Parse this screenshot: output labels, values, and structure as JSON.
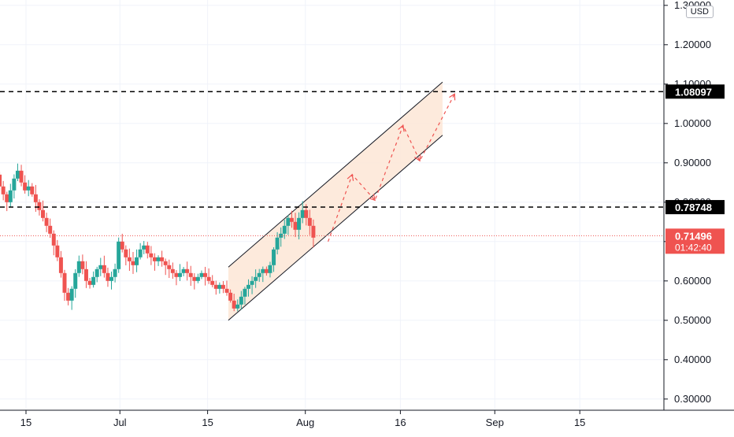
{
  "chart_data": {
    "type": "candlestick",
    "quote_currency": "USD",
    "x_ticks": [
      "15",
      "Jul",
      "15",
      "Aug",
      "16",
      "Sep",
      "15"
    ],
    "y_ticks": [
      "0.30000",
      "0.40000",
      "0.50000",
      "0.60000",
      "0.70000",
      "0.80000",
      "0.90000",
      "1.00000",
      "1.10000",
      "1.20000",
      "1.30000"
    ],
    "ylim": [
      0.29,
      1.31
    ],
    "grid": true,
    "price_levels": [
      {
        "label": "1.08097",
        "value": 1.08097,
        "style": "dashed",
        "color": "#000000"
      },
      {
        "label": "0.78748",
        "value": 0.78748,
        "style": "dashed",
        "color": "#000000"
      }
    ],
    "last_price": {
      "label": "0.71496",
      "value": 0.71496,
      "countdown": "01:42:40",
      "color": "#ef5350"
    },
    "candle_colors": {
      "up": "#26a69a",
      "down": "#ef5350"
    },
    "channel": {
      "upper": [
        [
          0.635,
          0.635
        ],
        [
          0.48,
          1.105
        ]
      ],
      "lower": [
        [
          0.5,
          0.5
        ],
        [
          0.355,
          0.97
        ]
      ],
      "fill": "#fde6d6"
    },
    "projection_path": [
      0.7,
      0.87,
      0.805,
      0.995,
      0.905,
      1.075
    ],
    "closes": [
      0.87,
      0.84,
      0.82,
      0.8,
      0.83,
      0.86,
      0.88,
      0.85,
      0.83,
      0.84,
      0.82,
      0.8,
      0.78,
      0.76,
      0.74,
      0.72,
      0.69,
      0.66,
      0.62,
      0.57,
      0.55,
      0.58,
      0.62,
      0.65,
      0.63,
      0.6,
      0.59,
      0.61,
      0.63,
      0.64,
      0.62,
      0.6,
      0.61,
      0.63,
      0.7,
      0.68,
      0.66,
      0.65,
      0.64,
      0.66,
      0.68,
      0.69,
      0.67,
      0.66,
      0.65,
      0.66,
      0.65,
      0.64,
      0.63,
      0.62,
      0.61,
      0.62,
      0.63,
      0.62,
      0.61,
      0.6,
      0.61,
      0.62,
      0.61,
      0.6,
      0.59,
      0.58,
      0.59,
      0.58,
      0.57,
      0.55,
      0.53,
      0.54,
      0.56,
      0.58,
      0.59,
      0.6,
      0.61,
      0.62,
      0.63,
      0.62,
      0.64,
      0.68,
      0.71,
      0.72,
      0.74,
      0.76,
      0.75,
      0.73,
      0.76,
      0.78,
      0.76,
      0.74,
      0.71
    ]
  }
}
